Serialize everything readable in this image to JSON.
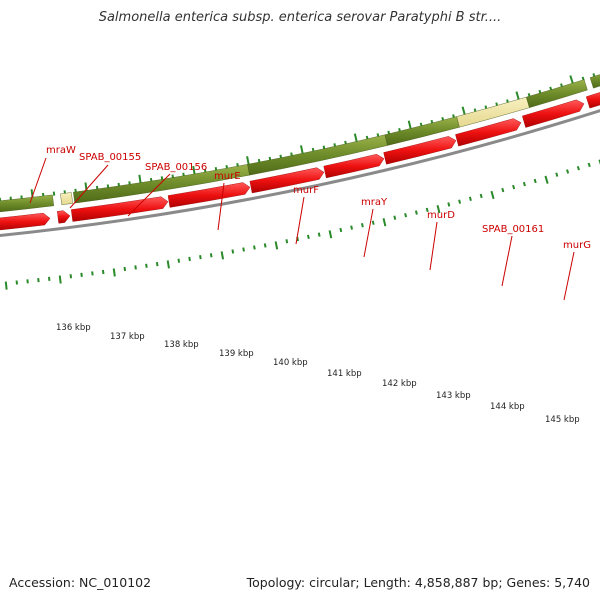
{
  "header": {
    "title": "Salmonella enterica subsp. enterica serovar Paratyphi B str...."
  },
  "footer": {
    "accession": "Accession: NC_010102",
    "summary": "Topology: circular; Length: 4,858,887 bp; Genes: 5,740"
  },
  "colors": {
    "gene_track": "#6e8c2a",
    "gene_track_highlight": "#f0e6a0",
    "cds_arrow": "#ee1111",
    "backbone": "#8a8a8a",
    "tick": "#2a8a2a",
    "label": "#cc0000"
  },
  "gene_labels": [
    "mraW",
    "SPAB_00155",
    "SPAB_00156",
    "murE",
    "murF",
    "mraY",
    "murD",
    "SPAB_00161",
    "murG"
  ],
  "scale_labels": [
    "136 kbp",
    "137 kbp",
    "138 kbp",
    "139 kbp",
    "140 kbp",
    "141 kbp",
    "142 kbp",
    "143 kbp",
    "144 kbp",
    "145 kbp"
  ]
}
